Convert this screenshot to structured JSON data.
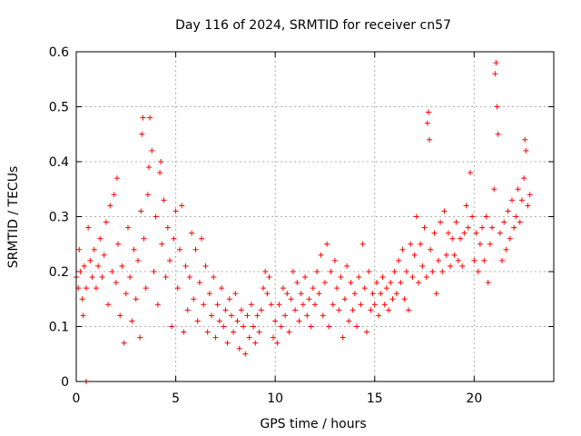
{
  "chart_data": {
    "type": "scatter",
    "title": "Day 116 of 2024, SRMTID for receiver cn57",
    "xlabel": "GPS time / hours",
    "ylabel": "SRMTID / TECUs",
    "xlim": [
      0,
      24
    ],
    "ylim": [
      0,
      0.6
    ],
    "xticks": [
      0,
      5,
      10,
      15,
      20
    ],
    "xtick_labels": [
      "0",
      "5",
      "10",
      "15",
      "20"
    ],
    "yticks": [
      0,
      0.1,
      0.2,
      0.3,
      0.4,
      0.5,
      0.6
    ],
    "ytick_labels": [
      "0",
      "0.1",
      "0.2",
      "0.3",
      "0.4",
      "0.5",
      "0.6"
    ],
    "grid": true,
    "marker": "+",
    "color": "#ff0000",
    "series": [
      {
        "name": "SRMTID",
        "points": [
          [
            0.0,
            0.19
          ],
          [
            0.1,
            0.17
          ],
          [
            0.15,
            0.24
          ],
          [
            0.2,
            0.2
          ],
          [
            0.3,
            0.15
          ],
          [
            0.35,
            0.12
          ],
          [
            0.4,
            0.21
          ],
          [
            0.5,
            0.17
          ],
          [
            0.5,
            0.0
          ],
          [
            0.6,
            0.28
          ],
          [
            0.7,
            0.22
          ],
          [
            0.8,
            0.19
          ],
          [
            0.9,
            0.24
          ],
          [
            1.0,
            0.17
          ],
          [
            1.1,
            0.21
          ],
          [
            1.2,
            0.26
          ],
          [
            1.3,
            0.19
          ],
          [
            1.4,
            0.23
          ],
          [
            1.5,
            0.29
          ],
          [
            1.6,
            0.14
          ],
          [
            1.7,
            0.32
          ],
          [
            1.8,
            0.2
          ],
          [
            1.9,
            0.34
          ],
          [
            2.0,
            0.18
          ],
          [
            2.05,
            0.37
          ],
          [
            2.1,
            0.25
          ],
          [
            2.2,
            0.12
          ],
          [
            2.3,
            0.21
          ],
          [
            2.4,
            0.07
          ],
          [
            2.5,
            0.16
          ],
          [
            2.6,
            0.28
          ],
          [
            2.7,
            0.19
          ],
          [
            2.8,
            0.11
          ],
          [
            2.9,
            0.24
          ],
          [
            3.0,
            0.15
          ],
          [
            3.1,
            0.22
          ],
          [
            3.2,
            0.08
          ],
          [
            3.25,
            0.31
          ],
          [
            3.3,
            0.45
          ],
          [
            3.35,
            0.48
          ],
          [
            3.4,
            0.26
          ],
          [
            3.5,
            0.17
          ],
          [
            3.6,
            0.34
          ],
          [
            3.65,
            0.39
          ],
          [
            3.7,
            0.48
          ],
          [
            3.8,
            0.42
          ],
          [
            3.9,
            0.2
          ],
          [
            4.0,
            0.3
          ],
          [
            4.1,
            0.14
          ],
          [
            4.2,
            0.38
          ],
          [
            4.25,
            0.4
          ],
          [
            4.3,
            0.25
          ],
          [
            4.4,
            0.33
          ],
          [
            4.5,
            0.19
          ],
          [
            4.6,
            0.28
          ],
          [
            4.7,
            0.22
          ],
          [
            4.8,
            0.1
          ],
          [
            4.9,
            0.26
          ],
          [
            5.0,
            0.31
          ],
          [
            5.1,
            0.17
          ],
          [
            5.2,
            0.24
          ],
          [
            5.3,
            0.32
          ],
          [
            5.4,
            0.09
          ],
          [
            5.5,
            0.21
          ],
          [
            5.6,
            0.13
          ],
          [
            5.7,
            0.19
          ],
          [
            5.8,
            0.27
          ],
          [
            5.9,
            0.15
          ],
          [
            6.0,
            0.24
          ],
          [
            6.1,
            0.11
          ],
          [
            6.2,
            0.18
          ],
          [
            6.3,
            0.26
          ],
          [
            6.4,
            0.14
          ],
          [
            6.5,
            0.21
          ],
          [
            6.6,
            0.09
          ],
          [
            6.7,
            0.16
          ],
          [
            6.8,
            0.12
          ],
          [
            6.9,
            0.19
          ],
          [
            7.0,
            0.08
          ],
          [
            7.1,
            0.14
          ],
          [
            7.2,
            0.11
          ],
          [
            7.3,
            0.17
          ],
          [
            7.4,
            0.1
          ],
          [
            7.5,
            0.13
          ],
          [
            7.6,
            0.07
          ],
          [
            7.7,
            0.15
          ],
          [
            7.8,
            0.12
          ],
          [
            7.9,
            0.09
          ],
          [
            8.0,
            0.16
          ],
          [
            8.1,
            0.11
          ],
          [
            8.2,
            0.06
          ],
          [
            8.3,
            0.13
          ],
          [
            8.4,
            0.1
          ],
          [
            8.5,
            0.05
          ],
          [
            8.6,
            0.12
          ],
          [
            8.7,
            0.08
          ],
          [
            8.8,
            0.14
          ],
          [
            8.9,
            0.1
          ],
          [
            9.0,
            0.07
          ],
          [
            9.1,
            0.12
          ],
          [
            9.2,
            0.09
          ],
          [
            9.3,
            0.13
          ],
          [
            9.4,
            0.17
          ],
          [
            9.5,
            0.2
          ],
          [
            9.6,
            0.16
          ],
          [
            9.7,
            0.19
          ],
          [
            9.8,
            0.14
          ],
          [
            9.9,
            0.08
          ],
          [
            10.0,
            0.11
          ],
          [
            10.1,
            0.07
          ],
          [
            10.2,
            0.14
          ],
          [
            10.3,
            0.1
          ],
          [
            10.4,
            0.17
          ],
          [
            10.5,
            0.12
          ],
          [
            10.6,
            0.16
          ],
          [
            10.7,
            0.09
          ],
          [
            10.8,
            0.15
          ],
          [
            10.9,
            0.2
          ],
          [
            11.0,
            0.13
          ],
          [
            11.1,
            0.18
          ],
          [
            11.2,
            0.11
          ],
          [
            11.3,
            0.16
          ],
          [
            11.4,
            0.14
          ],
          [
            11.5,
            0.19
          ],
          [
            11.6,
            0.12
          ],
          [
            11.7,
            0.15
          ],
          [
            11.8,
            0.1
          ],
          [
            11.9,
            0.17
          ],
          [
            12.0,
            0.14
          ],
          [
            12.1,
            0.2
          ],
          [
            12.2,
            0.16
          ],
          [
            12.3,
            0.23
          ],
          [
            12.4,
            0.12
          ],
          [
            12.5,
            0.18
          ],
          [
            12.6,
            0.25
          ],
          [
            12.7,
            0.1
          ],
          [
            12.8,
            0.2
          ],
          [
            12.9,
            0.14
          ],
          [
            13.0,
            0.22
          ],
          [
            13.1,
            0.17
          ],
          [
            13.2,
            0.13
          ],
          [
            13.3,
            0.19
          ],
          [
            13.4,
            0.08
          ],
          [
            13.5,
            0.15
          ],
          [
            13.6,
            0.21
          ],
          [
            13.7,
            0.11
          ],
          [
            13.8,
            0.18
          ],
          [
            13.9,
            0.13
          ],
          [
            14.0,
            0.16
          ],
          [
            14.1,
            0.1
          ],
          [
            14.2,
            0.19
          ],
          [
            14.3,
            0.14
          ],
          [
            14.4,
            0.25
          ],
          [
            14.5,
            0.17
          ],
          [
            14.6,
            0.09
          ],
          [
            14.7,
            0.2
          ],
          [
            14.8,
            0.13
          ],
          [
            14.9,
            0.16
          ],
          [
            15.0,
            0.14
          ],
          [
            15.1,
            0.18
          ],
          [
            15.2,
            0.12
          ],
          [
            15.3,
            0.16
          ],
          [
            15.4,
            0.19
          ],
          [
            15.5,
            0.14
          ],
          [
            15.6,
            0.17
          ],
          [
            15.7,
            0.13
          ],
          [
            15.8,
            0.18
          ],
          [
            15.9,
            0.15
          ],
          [
            16.0,
            0.2
          ],
          [
            16.1,
            0.16
          ],
          [
            16.2,
            0.22
          ],
          [
            16.3,
            0.18
          ],
          [
            16.4,
            0.24
          ],
          [
            16.5,
            0.15
          ],
          [
            16.6,
            0.2
          ],
          [
            16.7,
            0.13
          ],
          [
            16.8,
            0.25
          ],
          [
            16.9,
            0.19
          ],
          [
            17.0,
            0.23
          ],
          [
            17.1,
            0.3
          ],
          [
            17.2,
            0.18
          ],
          [
            17.3,
            0.25
          ],
          [
            17.4,
            0.21
          ],
          [
            17.5,
            0.28
          ],
          [
            17.6,
            0.19
          ],
          [
            17.65,
            0.47
          ],
          [
            17.7,
            0.49
          ],
          [
            17.75,
            0.44
          ],
          [
            17.8,
            0.24
          ],
          [
            17.9,
            0.2
          ],
          [
            18.0,
            0.27
          ],
          [
            18.1,
            0.16
          ],
          [
            18.2,
            0.22
          ],
          [
            18.3,
            0.29
          ],
          [
            18.4,
            0.2
          ],
          [
            18.5,
            0.31
          ],
          [
            18.6,
            0.23
          ],
          [
            18.7,
            0.27
          ],
          [
            18.8,
            0.21
          ],
          [
            18.9,
            0.26
          ],
          [
            19.0,
            0.23
          ],
          [
            19.1,
            0.29
          ],
          [
            19.2,
            0.22
          ],
          [
            19.3,
            0.26
          ],
          [
            19.4,
            0.21
          ],
          [
            19.5,
            0.27
          ],
          [
            19.6,
            0.32
          ],
          [
            19.7,
            0.28
          ],
          [
            19.8,
            0.38
          ],
          [
            19.9,
            0.3
          ],
          [
            20.0,
            0.22
          ],
          [
            20.1,
            0.27
          ],
          [
            20.2,
            0.2
          ],
          [
            20.3,
            0.25
          ],
          [
            20.4,
            0.28
          ],
          [
            20.5,
            0.22
          ],
          [
            20.6,
            0.3
          ],
          [
            20.7,
            0.18
          ],
          [
            20.8,
            0.25
          ],
          [
            20.9,
            0.28
          ],
          [
            21.0,
            0.35
          ],
          [
            21.05,
            0.56
          ],
          [
            21.1,
            0.58
          ],
          [
            21.15,
            0.5
          ],
          [
            21.2,
            0.45
          ],
          [
            21.3,
            0.27
          ],
          [
            21.4,
            0.22
          ],
          [
            21.5,
            0.29
          ],
          [
            21.6,
            0.24
          ],
          [
            21.7,
            0.31
          ],
          [
            21.8,
            0.26
          ],
          [
            21.9,
            0.33
          ],
          [
            22.0,
            0.28
          ],
          [
            22.1,
            0.3
          ],
          [
            22.2,
            0.35
          ],
          [
            22.3,
            0.29
          ],
          [
            22.4,
            0.33
          ],
          [
            22.5,
            0.37
          ],
          [
            22.55,
            0.44
          ],
          [
            22.6,
            0.42
          ],
          [
            22.7,
            0.32
          ],
          [
            22.8,
            0.34
          ]
        ]
      }
    ]
  }
}
